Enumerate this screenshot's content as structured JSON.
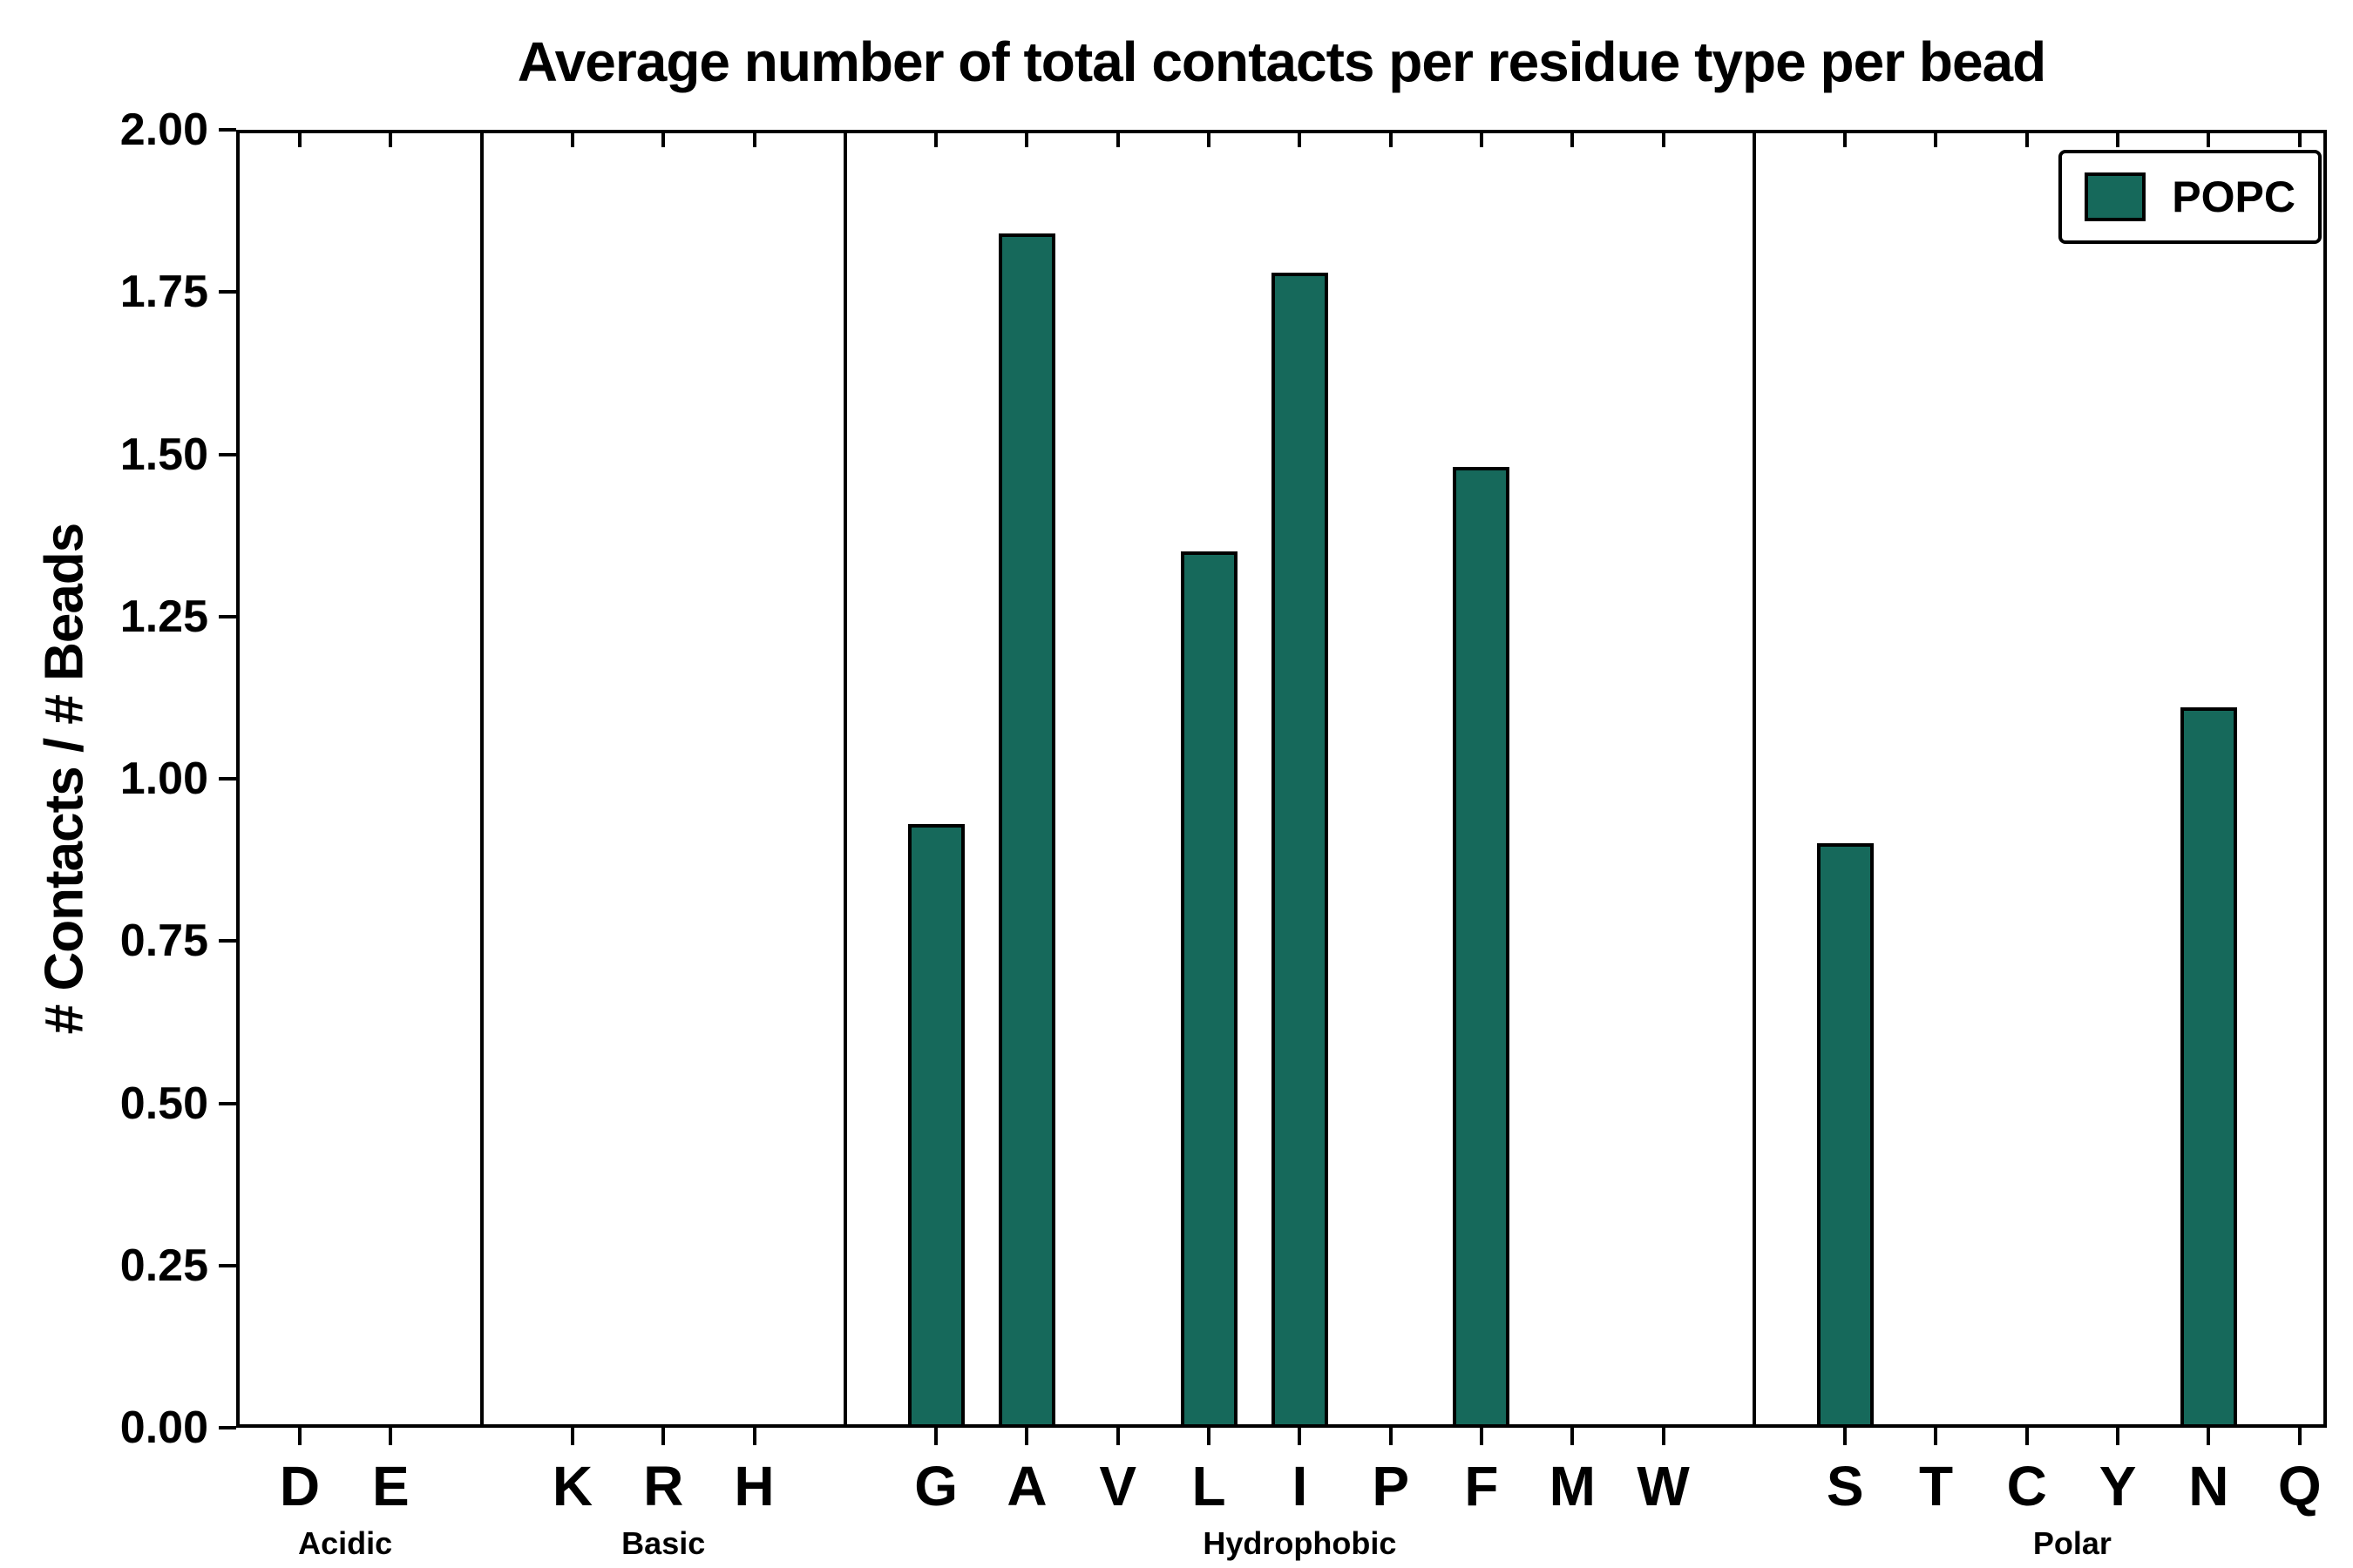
{
  "chart_data": {
    "type": "bar",
    "title": "Average number of total contacts per residue type per bead",
    "xlabel": "",
    "ylabel": "# Contacts / # Beads",
    "ylim": [
      0,
      2.0
    ],
    "ytick_step": 0.25,
    "ytick_labels": [
      "0.00",
      "0.25",
      "0.50",
      "0.75",
      "1.00",
      "1.25",
      "1.50",
      "1.75",
      "2.00"
    ],
    "grid": false,
    "bar_color": "#16695B",
    "bar_edge_color": "#000000",
    "legend_position": "upper right",
    "legend": [
      {
        "name": "POPC",
        "color": "#16695B"
      }
    ],
    "groups": [
      {
        "label": "Acidic",
        "categories": [
          "D",
          "E"
        ],
        "values": [
          0.0,
          0.0
        ]
      },
      {
        "label": "Basic",
        "categories": [
          "K",
          "R",
          "H"
        ],
        "values": [
          0.0,
          0.0,
          0.0
        ]
      },
      {
        "label": "Hydrophobic",
        "categories": [
          "G",
          "A",
          "V",
          "L",
          "I",
          "P",
          "F",
          "M",
          "W"
        ],
        "values": [
          0.93,
          1.84,
          0.0,
          1.35,
          1.78,
          0.0,
          1.48,
          0.0,
          0.0
        ]
      },
      {
        "label": "Polar",
        "categories": [
          "S",
          "T",
          "C",
          "Y",
          "N",
          "Q"
        ],
        "values": [
          0.9,
          0.0,
          0.0,
          0.0,
          1.11,
          0.0
        ]
      }
    ]
  }
}
